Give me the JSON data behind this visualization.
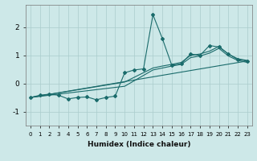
{
  "xlabel": "Humidex (Indice chaleur)",
  "ylabel": "",
  "xlim": [
    -0.5,
    23.5
  ],
  "ylim": [
    -1.5,
    2.8
  ],
  "background_color": "#cde8e8",
  "grid_color": "#aacccc",
  "line_color": "#1a6b6b",
  "x_ticks": [
    0,
    1,
    2,
    3,
    4,
    5,
    6,
    7,
    8,
    9,
    10,
    11,
    12,
    13,
    14,
    15,
    16,
    17,
    18,
    19,
    20,
    21,
    22,
    23
  ],
  "y_ticks": [
    -1,
    0,
    1,
    2
  ],
  "line1_x": [
    0,
    1,
    2,
    3,
    4,
    5,
    6,
    7,
    8,
    9,
    10,
    11,
    12,
    13,
    14,
    15,
    16,
    17,
    18,
    19,
    20,
    21,
    22,
    23
  ],
  "line1_y": [
    -0.5,
    -0.42,
    -0.38,
    -0.42,
    -0.55,
    -0.5,
    -0.48,
    -0.58,
    -0.5,
    -0.45,
    0.38,
    0.48,
    0.52,
    2.45,
    1.6,
    0.65,
    0.7,
    1.05,
    1.0,
    1.35,
    1.3,
    1.05,
    0.85,
    0.8
  ],
  "line2_x": [
    0,
    23
  ],
  "line2_y": [
    -0.5,
    0.8
  ],
  "line3_x": [
    0,
    10,
    13,
    14,
    15,
    16,
    17,
    18,
    19,
    20,
    21,
    22,
    23
  ],
  "line3_y": [
    -0.5,
    0.05,
    0.55,
    0.62,
    0.68,
    0.75,
    1.0,
    1.05,
    1.15,
    1.32,
    1.05,
    0.88,
    0.82
  ],
  "line4_x": [
    0,
    10,
    13,
    14,
    15,
    16,
    17,
    18,
    19,
    20,
    21,
    22,
    23
  ],
  "line4_y": [
    -0.5,
    -0.1,
    0.48,
    0.55,
    0.62,
    0.68,
    0.92,
    0.98,
    1.08,
    1.25,
    0.98,
    0.82,
    0.75
  ]
}
